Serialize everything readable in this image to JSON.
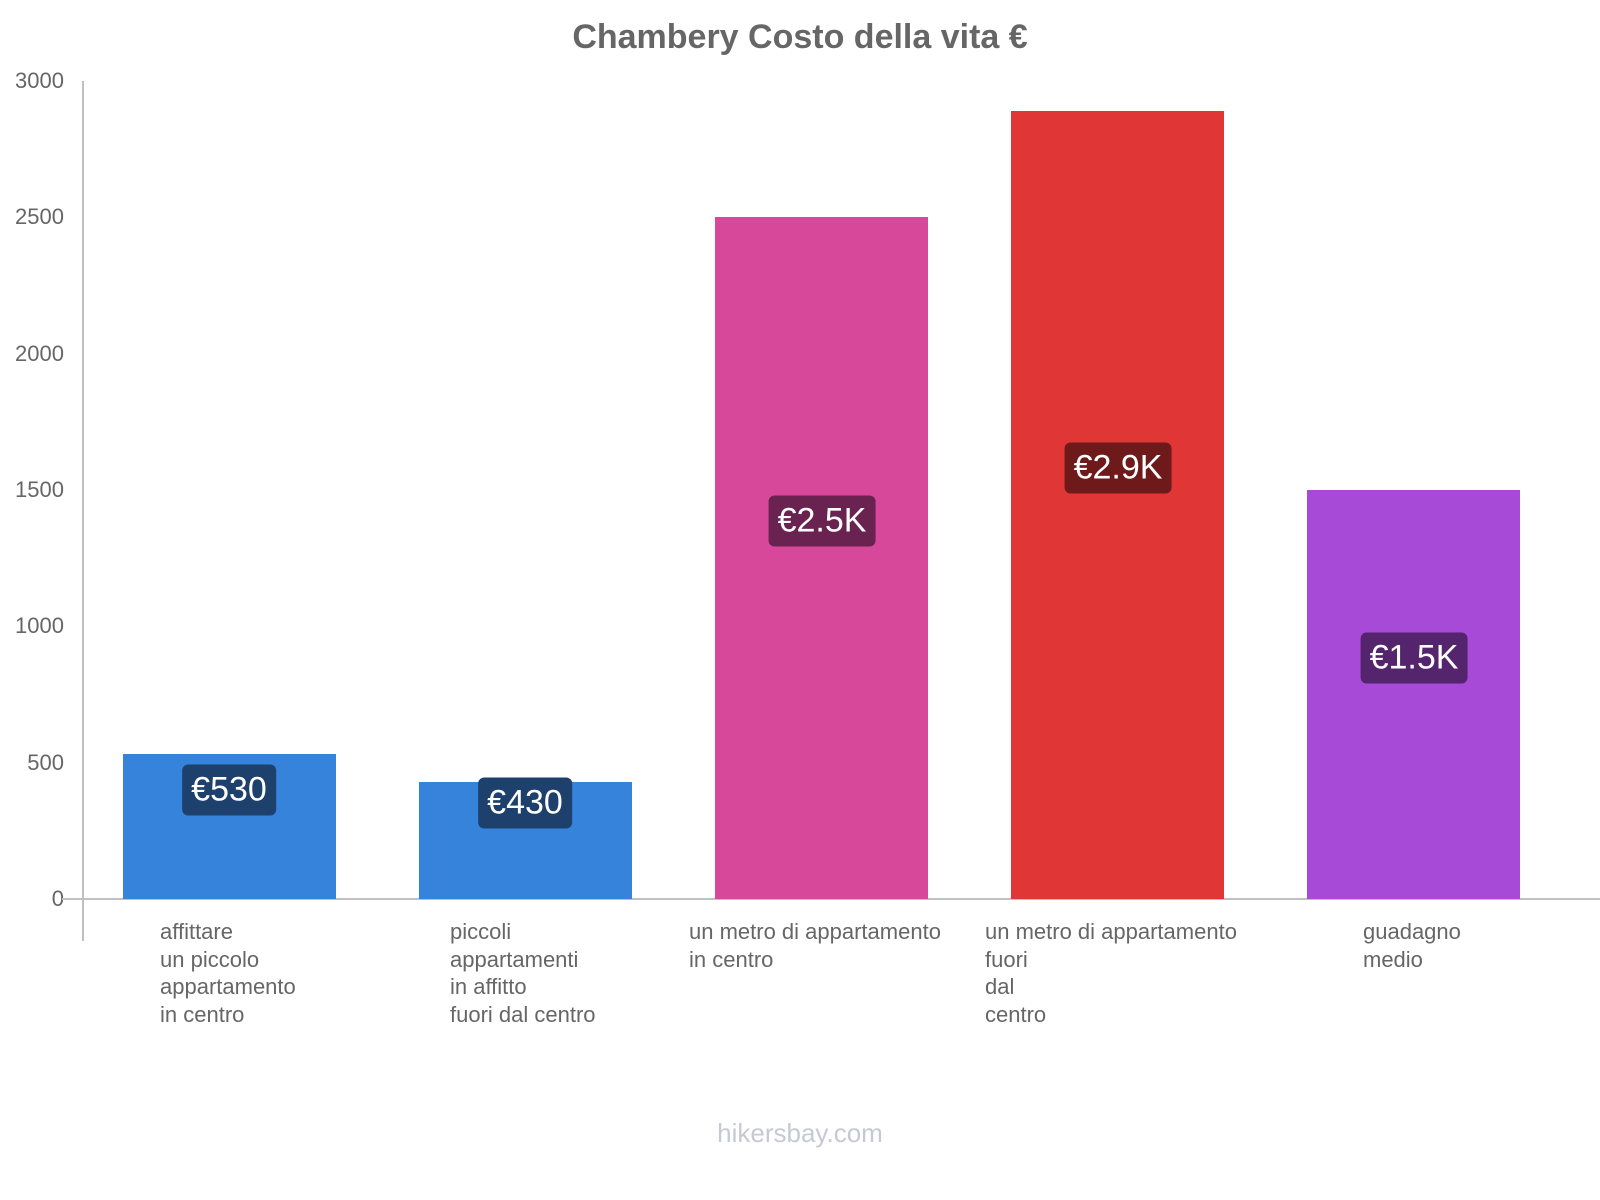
{
  "chart_data": {
    "type": "bar",
    "title": "Chambery Costo della vita €",
    "xlabel": "",
    "ylabel": "",
    "ylim": [
      0,
      3000
    ],
    "yticks": [
      "0",
      "500",
      "1000",
      "1500",
      "2000",
      "2500",
      "3000"
    ],
    "grid": false,
    "legend": null,
    "categories": [
      "affittare un piccolo appartamento in centro",
      "piccoli appartamenti in affitto fuori dal centro",
      "un metro di appartamento in centro",
      "un metro di appartamento fuori dal centro",
      "guadagno medio"
    ],
    "values": [
      530,
      430,
      2500,
      2890,
      1500
    ],
    "value_labels": [
      "€530",
      "€430",
      "€2.5K",
      "€2.9K",
      "€1.5K"
    ],
    "bar_colors": [
      "#3683dc",
      "#3683dc",
      "#d8489a",
      "#e03636",
      "#a84ad8"
    ],
    "label_colors": [
      "#1e406c",
      "#1e406c",
      "#6a2250",
      "#6e1a1a",
      "#54246c"
    ]
  },
  "axis": {
    "ticks": [
      {
        "label": "3000",
        "y": 81
      },
      {
        "label": "2500",
        "y": 217
      },
      {
        "label": "2000",
        "y": 354
      },
      {
        "label": "1500",
        "y": 490
      },
      {
        "label": "1000",
        "y": 626
      },
      {
        "label": "500",
        "y": 763
      },
      {
        "label": "0",
        "y": 899
      }
    ]
  },
  "xlabels": [
    "affittare\nun piccolo\nappartamento\nin centro",
    "piccoli\nappartamenti\nin affitto\nfuori dal centro",
    "un metro di appartamento\nin centro",
    "un metro di appartamento\nfuori\ndal\ncentro",
    "guadagno\nmedio"
  ],
  "footer": "hikersbay.com"
}
